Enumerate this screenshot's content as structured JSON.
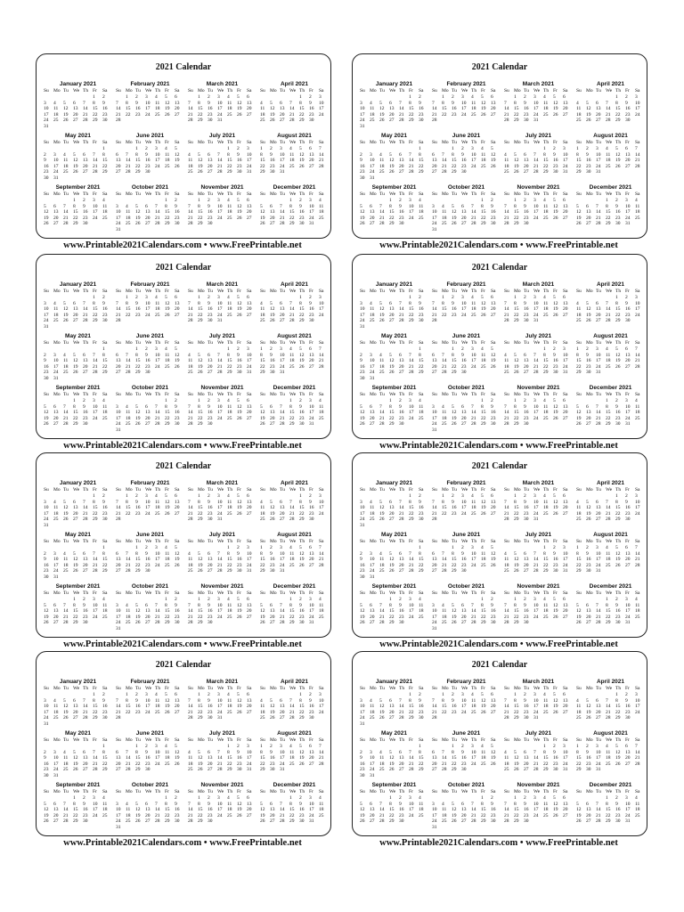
{
  "calendar": {
    "title": "2021 Calendar",
    "footer": "www.Printable2021Calendars.com • www.FreePrintable.net",
    "weekdays": [
      "Su",
      "Mo",
      "Tu",
      "We",
      "Th",
      "Fr",
      "Sa"
    ],
    "months": [
      {
        "name": "January 2021",
        "weeks": [
          [
            null,
            null,
            null,
            null,
            null,
            1,
            2
          ],
          [
            3,
            4,
            5,
            6,
            7,
            8,
            9
          ],
          [
            10,
            11,
            12,
            13,
            14,
            15,
            16
          ],
          [
            17,
            18,
            19,
            20,
            21,
            22,
            23
          ],
          [
            24,
            25,
            26,
            27,
            28,
            29,
            30
          ],
          [
            31
          ]
        ]
      },
      {
        "name": "February 2021",
        "weeks": [
          [
            null,
            1,
            2,
            3,
            4,
            5,
            6
          ],
          [
            7,
            8,
            9,
            10,
            11,
            12,
            13
          ],
          [
            14,
            15,
            16,
            17,
            18,
            19,
            20
          ],
          [
            21,
            22,
            23,
            24,
            25,
            26,
            27
          ],
          [
            28
          ]
        ]
      },
      {
        "name": "March 2021",
        "weeks": [
          [
            null,
            1,
            2,
            3,
            4,
            5,
            6
          ],
          [
            7,
            8,
            9,
            10,
            11,
            12,
            13
          ],
          [
            14,
            15,
            16,
            17,
            18,
            19,
            20
          ],
          [
            21,
            22,
            23,
            24,
            25,
            26,
            27
          ],
          [
            28,
            29,
            30,
            31
          ]
        ]
      },
      {
        "name": "April 2021",
        "weeks": [
          [
            null,
            null,
            null,
            null,
            1,
            2,
            3
          ],
          [
            4,
            5,
            6,
            7,
            8,
            9,
            10
          ],
          [
            11,
            12,
            13,
            14,
            15,
            16,
            17
          ],
          [
            18,
            19,
            20,
            21,
            22,
            23,
            24
          ],
          [
            25,
            26,
            27,
            28,
            29,
            30
          ]
        ]
      },
      {
        "name": "May 2021",
        "weeks": [
          [
            null,
            null,
            null,
            null,
            null,
            null,
            1
          ],
          [
            2,
            3,
            4,
            5,
            6,
            7,
            8
          ],
          [
            9,
            10,
            11,
            12,
            13,
            14,
            15
          ],
          [
            16,
            17,
            18,
            19,
            20,
            21,
            22
          ],
          [
            23,
            24,
            25,
            26,
            27,
            28,
            29
          ],
          [
            30,
            31
          ]
        ]
      },
      {
        "name": "June 2021",
        "weeks": [
          [
            null,
            null,
            1,
            2,
            3,
            4,
            5
          ],
          [
            6,
            7,
            8,
            9,
            10,
            11,
            12
          ],
          [
            13,
            14,
            15,
            16,
            17,
            18,
            19
          ],
          [
            20,
            21,
            22,
            23,
            24,
            25,
            26
          ],
          [
            27,
            28,
            29,
            30
          ]
        ]
      },
      {
        "name": "July 2021",
        "weeks": [
          [
            null,
            null,
            null,
            null,
            1,
            2,
            3
          ],
          [
            4,
            5,
            6,
            7,
            8,
            9,
            10
          ],
          [
            11,
            12,
            13,
            14,
            15,
            16,
            17
          ],
          [
            18,
            19,
            20,
            21,
            22,
            23,
            24
          ],
          [
            25,
            26,
            27,
            28,
            29,
            30,
            31
          ]
        ]
      },
      {
        "name": "August 2021",
        "weeks": [
          [
            1,
            2,
            3,
            4,
            5,
            6,
            7
          ],
          [
            8,
            9,
            10,
            11,
            12,
            13,
            14
          ],
          [
            15,
            16,
            17,
            18,
            19,
            20,
            21
          ],
          [
            22,
            23,
            24,
            25,
            26,
            27,
            28
          ],
          [
            29,
            30,
            31
          ]
        ]
      },
      {
        "name": "September 2021",
        "weeks": [
          [
            null,
            null,
            null,
            1,
            2,
            3,
            4
          ],
          [
            5,
            6,
            7,
            8,
            9,
            10,
            11
          ],
          [
            12,
            13,
            14,
            15,
            16,
            17,
            18
          ],
          [
            19,
            20,
            21,
            22,
            23,
            24,
            25
          ],
          [
            26,
            27,
            28,
            29,
            30
          ]
        ]
      },
      {
        "name": "October 2021",
        "weeks": [
          [
            null,
            null,
            null,
            null,
            null,
            1,
            2
          ],
          [
            3,
            4,
            5,
            6,
            7,
            8,
            9
          ],
          [
            10,
            11,
            12,
            13,
            14,
            15,
            16
          ],
          [
            17,
            18,
            19,
            20,
            21,
            22,
            23
          ],
          [
            24,
            25,
            26,
            27,
            28,
            29,
            30
          ],
          [
            31
          ]
        ]
      },
      {
        "name": "November 2021",
        "weeks": [
          [
            null,
            1,
            2,
            3,
            4,
            5,
            6
          ],
          [
            7,
            8,
            9,
            10,
            11,
            12,
            13
          ],
          [
            14,
            15,
            16,
            17,
            18,
            19,
            20
          ],
          [
            21,
            22,
            23,
            24,
            25,
            26,
            27
          ],
          [
            28,
            29,
            30
          ]
        ]
      },
      {
        "name": "December 2021",
        "weeks": [
          [
            null,
            null,
            null,
            1,
            2,
            3,
            4
          ],
          [
            5,
            6,
            7,
            8,
            9,
            10,
            11
          ],
          [
            12,
            13,
            14,
            15,
            16,
            17,
            18
          ],
          [
            19,
            20,
            21,
            22,
            23,
            24,
            25
          ],
          [
            26,
            27,
            28,
            29,
            30,
            31
          ]
        ]
      }
    ]
  }
}
